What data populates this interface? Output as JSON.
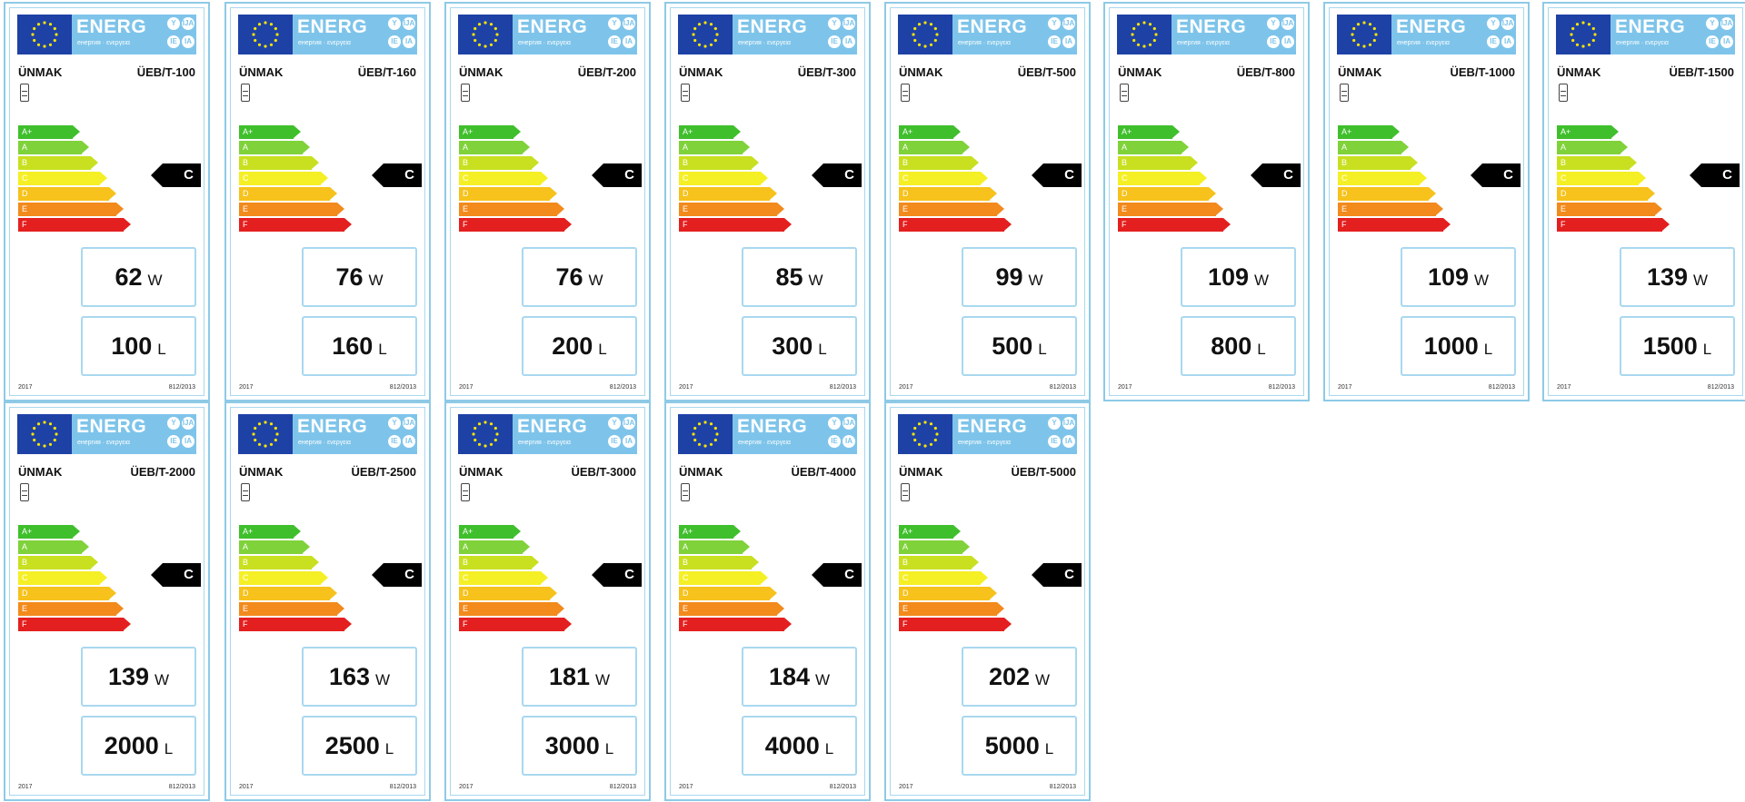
{
  "header": {
    "energy_word": "ENERG",
    "subline": "енергия · ενεργεια",
    "lang_codes": [
      "Y",
      "IJA",
      "IE",
      "IA"
    ]
  },
  "brand": "ÜNMAK",
  "class_letters": [
    "A+",
    "A",
    "B",
    "C",
    "D",
    "E",
    "F"
  ],
  "class_colors": [
    "#3fbf2c",
    "#7fd23a",
    "#c8e01f",
    "#f5ef25",
    "#f6c21b",
    "#f28a1c",
    "#e41f1f"
  ],
  "rating": "C",
  "power_unit": "W",
  "volume_unit": "L",
  "year": "2017",
  "regulation": "812/2013",
  "labels": [
    {
      "model": "ÜEB/T-100",
      "power": "62",
      "volume": "100"
    },
    {
      "model": "ÜEB/T-160",
      "power": "76",
      "volume": "160"
    },
    {
      "model": "ÜEB/T-200",
      "power": "76",
      "volume": "200"
    },
    {
      "model": "ÜEB/T-300",
      "power": "85",
      "volume": "300"
    },
    {
      "model": "ÜEB/T-500",
      "power": "99",
      "volume": "500"
    },
    {
      "model": "ÜEB/T-800",
      "power": "109",
      "volume": "800"
    },
    {
      "model": "ÜEB/T-1000",
      "power": "109",
      "volume": "1000"
    },
    {
      "model": "ÜEB/T-1500",
      "power": "139",
      "volume": "1500"
    },
    {
      "model": "ÜEB/T-2000",
      "power": "139",
      "volume": "2000"
    },
    {
      "model": "ÜEB/T-2500",
      "power": "163",
      "volume": "2500"
    },
    {
      "model": "ÜEB/T-3000",
      "power": "181",
      "volume": "3000"
    },
    {
      "model": "ÜEB/T-4000",
      "power": "184",
      "volume": "4000"
    },
    {
      "model": "ÜEB/T-5000",
      "power": "202",
      "volume": "5000"
    }
  ]
}
